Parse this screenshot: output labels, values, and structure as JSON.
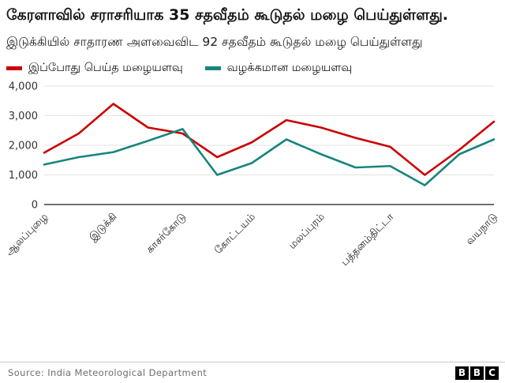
{
  "header": {
    "title": "கேரளாவில் சராசரியாக 35 சதவீதம் கூடுதல் மழை பெய்துள்ளது.",
    "subtitle": "இடுக்கியில் சாதாரண அளவைவிட 92 சதவீதம் கூடுதல் மழை பெய்துள்ளது"
  },
  "legend": {
    "items": [
      {
        "label": "இப்போது பெய்த மழையளவு",
        "color": "#CC0000"
      },
      {
        "label": "வழக்கமான மழையளவு",
        "color": "#17867C"
      }
    ]
  },
  "chart_data": {
    "type": "line",
    "title": "கேரளாவில் சராசரியாக 35 சதவீதம் கூடுதல் மழை பெய்துள்ளது.",
    "subtitle": "இடுக்கியில் சாதாரண அளவைவிட 92 சதவீதம் கூடுதல் மழை பெய்துள்ளது",
    "x_tick_labels": [
      "ஆலப்புழை",
      "இடுக்கி",
      "காசர்கோடு",
      "கோட்டயம்",
      "மலப்புரம்",
      "பத்தனம்திட்டா",
      "வயநாடு"
    ],
    "x_tick_label_indices": [
      0,
      2,
      4,
      6,
      8,
      10,
      13
    ],
    "num_points": 14,
    "series": [
      {
        "name": "இப்போது பெய்த மழையளவு",
        "color": "#CC0000",
        "values": [
          1750,
          2400,
          3400,
          2600,
          2400,
          1600,
          2100,
          2850,
          2600,
          2250,
          1950,
          1000,
          1850,
          2800
        ]
      },
      {
        "name": "வழக்கமான மழையளவு",
        "color": "#17867C",
        "values": [
          1350,
          1600,
          1770,
          2150,
          2550,
          1000,
          1400,
          2200,
          1700,
          1250,
          1300,
          650,
          1700,
          2200
        ]
      }
    ],
    "xlabel": "",
    "ylabel": "",
    "ylim": [
      0,
      4000
    ],
    "y_ticks": [
      0,
      1000,
      2000,
      3000,
      4000
    ],
    "y_tick_labels": [
      "0",
      "1,000",
      "2,000",
      "3,000",
      "4,000"
    ],
    "grid": "horizontal",
    "legend_position": "top"
  },
  "footer": {
    "source": "Source:  India  Meteorological  Department",
    "logo_letters": [
      "B",
      "B",
      "C"
    ]
  },
  "colors": {
    "accent_red": "#CC0000",
    "accent_teal": "#17867C",
    "grid": "#E3E3E3",
    "axis": "#1A1A1A",
    "source_text": "#6E6E6E"
  }
}
